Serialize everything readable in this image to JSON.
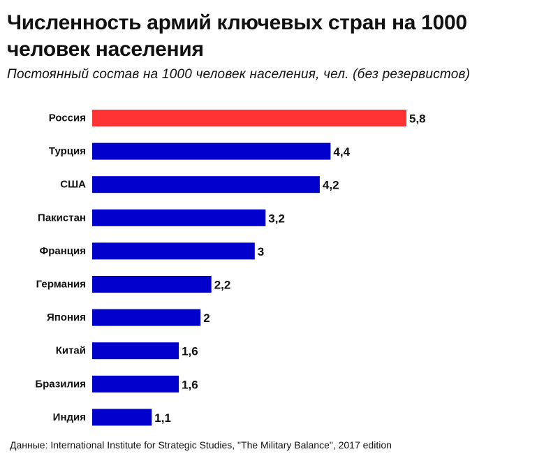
{
  "title": "Численность армий ключевых стран на 1000 человек населения",
  "subtitle": "Постоянный состав на 1000 человек населения, чел. (без резервистов)",
  "source": "Данные: International Institute for Strategic Studies, \"The Military Balance\", 2017 edition",
  "colors": {
    "highlight": "#ff3333",
    "default": "#0000cc"
  },
  "chart_data": {
    "type": "bar",
    "orientation": "horizontal",
    "title": "Численность армий ключевых стран на 1000 человек населения",
    "subtitle": "Постоянный состав на 1000 человек населения, чел. (без резервистов)",
    "xlabel": "",
    "ylabel": "",
    "xlim": [
      0,
      5.8
    ],
    "grid": false,
    "legend": "none",
    "categories": [
      "Россия",
      "Турция",
      "США",
      "Пакистан",
      "Франция",
      "Германия",
      "Япония",
      "Китай",
      "Бразилия",
      "Индия"
    ],
    "values": [
      5.8,
      4.4,
      4.2,
      3.2,
      3,
      2.2,
      2,
      1.6,
      1.6,
      1.1
    ],
    "value_labels": [
      "5,8",
      "4,4",
      "4,2",
      "3,2",
      "3",
      "2,2",
      "2",
      "1,6",
      "1,6",
      "1,1"
    ],
    "highlight": [
      "Россия"
    ]
  }
}
